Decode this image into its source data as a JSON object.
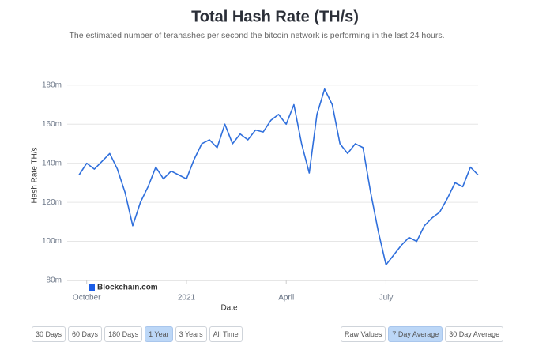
{
  "chart_data": {
    "type": "line",
    "title": "Total Hash Rate (TH/s)",
    "subtitle": "The estimated number of terahashes per second the bitcoin network is performing in the last 24 hours.",
    "x_label": "Date",
    "y_label": "Hash Rate TH/s",
    "watermark": "Blockchain.com",
    "categories": [
      null,
      "October",
      null,
      null,
      null,
      null,
      null,
      null,
      null,
      null,
      null,
      null,
      null,
      null,
      "2021",
      null,
      null,
      null,
      null,
      null,
      null,
      null,
      null,
      null,
      null,
      null,
      null,
      "April",
      null,
      null,
      null,
      null,
      null,
      null,
      null,
      null,
      null,
      null,
      null,
      null,
      "July",
      null,
      null,
      null,
      null,
      null,
      null,
      null,
      null,
      null,
      null,
      null,
      null
    ],
    "series": [
      {
        "name": "Hash Rate",
        "color": "#2f6fdc",
        "values": [
          134000000,
          140000000,
          137000000,
          141000000,
          145000000,
          137000000,
          125000000,
          108000000,
          120000000,
          128000000,
          138000000,
          132000000,
          136000000,
          134000000,
          132000000,
          142000000,
          150000000,
          152000000,
          148000000,
          160000000,
          150000000,
          155000000,
          152000000,
          157000000,
          156000000,
          162000000,
          165000000,
          160000000,
          170000000,
          150000000,
          135000000,
          165000000,
          178000000,
          170000000,
          150000000,
          145000000,
          150000000,
          148000000,
          125000000,
          105000000,
          88000000,
          93000000,
          98000000,
          102000000,
          100000000,
          108000000,
          112000000,
          115000000,
          122000000,
          130000000,
          128000000,
          138000000,
          134000000
        ]
      }
    ],
    "ylim": [
      80000000,
      188000000
    ],
    "yticks": [
      {
        "value": 80000000,
        "label": "80m"
      },
      {
        "value": 100000000,
        "label": "100m"
      },
      {
        "value": 120000000,
        "label": "120m"
      },
      {
        "value": 140000000,
        "label": "140m"
      },
      {
        "value": 160000000,
        "label": "160m"
      },
      {
        "value": 180000000,
        "label": "180m"
      }
    ],
    "grid": true
  },
  "controls": {
    "range_buttons": [
      {
        "label": "30 Days",
        "selected": false
      },
      {
        "label": "60 Days",
        "selected": false
      },
      {
        "label": "180 Days",
        "selected": false
      },
      {
        "label": "1 Year",
        "selected": true
      },
      {
        "label": "3 Years",
        "selected": false
      },
      {
        "label": "All Time",
        "selected": false
      }
    ],
    "mode_buttons": [
      {
        "label": "Raw Values",
        "selected": false
      },
      {
        "label": "7 Day Average",
        "selected": true
      },
      {
        "label": "30 Day Average",
        "selected": false
      }
    ]
  }
}
